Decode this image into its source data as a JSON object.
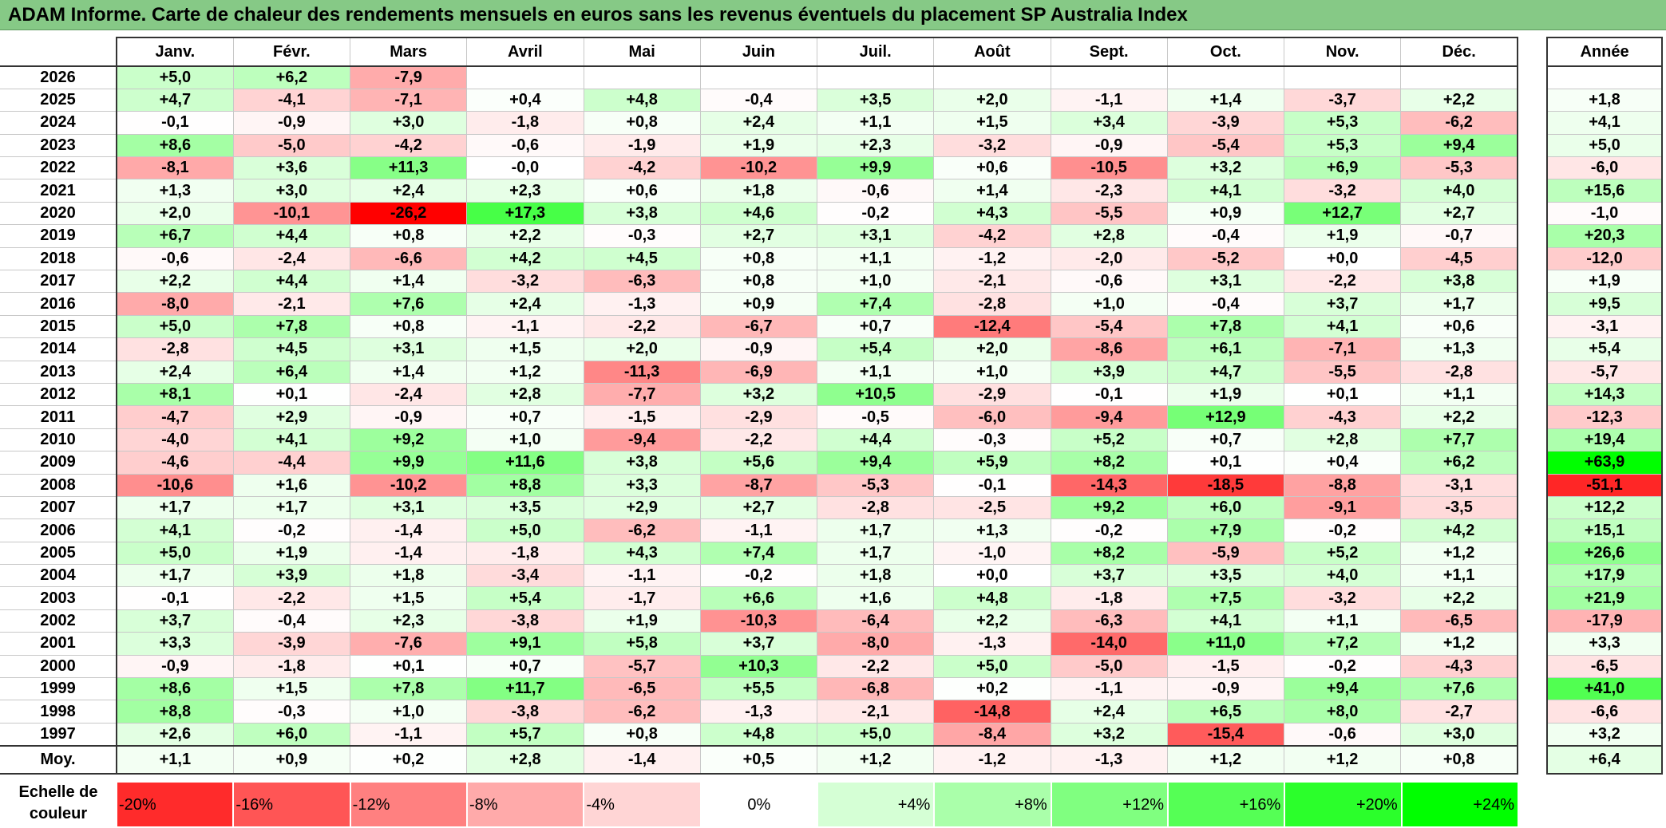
{
  "title": "ADAM Informe. Carte de chaleur des rendements mensuels en euros sans les revenus éventuels du placement SP Australia Index",
  "colors": {
    "title_bg": "#86c986",
    "max_red": "#ff0000",
    "max_green": "#00ff00",
    "neutral": "#ffffff"
  },
  "chart_data": {
    "type": "heatmap",
    "title": "ADAM Informe. Carte de chaleur des rendements mensuels en euros sans les revenus éventuels du placement SP Australia Index",
    "months": [
      "Janv.",
      "Févr.",
      "Mars",
      "Avril",
      "Mai",
      "Juin",
      "Juil.",
      "Août",
      "Sept.",
      "Oct.",
      "Nov.",
      "Déc."
    ],
    "year_header": "Année",
    "rows": [
      {
        "year": "2026",
        "values": [
          "+5,0",
          "+6,2",
          "-7,9",
          "",
          "",
          "",
          "",
          "",
          "",
          "",
          "",
          ""
        ],
        "annual": ""
      },
      {
        "year": "2025",
        "values": [
          "+4,7",
          "-4,1",
          "-7,1",
          "+0,4",
          "+4,8",
          "-0,4",
          "+3,5",
          "+2,0",
          "-1,1",
          "+1,4",
          "-3,7",
          "+2,2"
        ],
        "annual": "+1,8"
      },
      {
        "year": "2024",
        "values": [
          "-0,1",
          "-0,9",
          "+3,0",
          "-1,8",
          "+0,8",
          "+2,4",
          "+1,1",
          "+1,5",
          "+3,4",
          "-3,9",
          "+5,3",
          "-6,2"
        ],
        "annual": "+4,1"
      },
      {
        "year": "2023",
        "values": [
          "+8,6",
          "-5,0",
          "-4,2",
          "-0,6",
          "-1,9",
          "+1,9",
          "+2,3",
          "-3,2",
          "-0,9",
          "-5,4",
          "+5,3",
          "+9,4"
        ],
        "annual": "+5,0"
      },
      {
        "year": "2022",
        "values": [
          "-8,1",
          "+3,6",
          "+11,3",
          "-0,0",
          "-4,2",
          "-10,2",
          "+9,9",
          "+0,6",
          "-10,5",
          "+3,2",
          "+6,9",
          "-5,3"
        ],
        "annual": "-6,0"
      },
      {
        "year": "2021",
        "values": [
          "+1,3",
          "+3,0",
          "+2,4",
          "+2,3",
          "+0,6",
          "+1,8",
          "-0,6",
          "+1,4",
          "-2,3",
          "+4,1",
          "-3,2",
          "+4,0"
        ],
        "annual": "+15,6"
      },
      {
        "year": "2020",
        "values": [
          "+2,0",
          "-10,1",
          "-26,2",
          "+17,3",
          "+3,8",
          "+4,6",
          "-0,2",
          "+4,3",
          "-5,5",
          "+0,9",
          "+12,7",
          "+2,7"
        ],
        "annual": "-1,0"
      },
      {
        "year": "2019",
        "values": [
          "+6,7",
          "+4,4",
          "+0,8",
          "+2,2",
          "-0,3",
          "+2,7",
          "+3,1",
          "-4,2",
          "+2,8",
          "-0,4",
          "+1,9",
          "-0,7"
        ],
        "annual": "+20,3"
      },
      {
        "year": "2018",
        "values": [
          "-0,6",
          "-2,4",
          "-6,6",
          "+4,2",
          "+4,5",
          "+0,8",
          "+1,1",
          "-1,2",
          "-2,0",
          "-5,2",
          "+0,0",
          "-4,5"
        ],
        "annual": "-12,0"
      },
      {
        "year": "2017",
        "values": [
          "+2,2",
          "+4,4",
          "+1,4",
          "-3,2",
          "-6,3",
          "+0,8",
          "+1,0",
          "-2,1",
          "-0,6",
          "+3,1",
          "-2,2",
          "+3,8"
        ],
        "annual": "+1,9"
      },
      {
        "year": "2016",
        "values": [
          "-8,0",
          "-2,1",
          "+7,6",
          "+2,4",
          "-1,3",
          "+0,9",
          "+7,4",
          "-2,8",
          "+1,0",
          "-0,4",
          "+3,7",
          "+1,7"
        ],
        "annual": "+9,5"
      },
      {
        "year": "2015",
        "values": [
          "+5,0",
          "+7,8",
          "+0,8",
          "-1,1",
          "-2,2",
          "-6,7",
          "+0,7",
          "-12,4",
          "-5,4",
          "+7,8",
          "+4,1",
          "+0,6"
        ],
        "annual": "-3,1"
      },
      {
        "year": "2014",
        "values": [
          "-2,8",
          "+4,5",
          "+3,1",
          "+1,5",
          "+2,0",
          "-0,9",
          "+5,4",
          "+2,0",
          "-8,6",
          "+6,1",
          "-7,1",
          "+1,3"
        ],
        "annual": "+5,4"
      },
      {
        "year": "2013",
        "values": [
          "+2,4",
          "+6,4",
          "+1,4",
          "+1,2",
          "-11,3",
          "-6,9",
          "+1,1",
          "+1,0",
          "+3,9",
          "+4,7",
          "-5,5",
          "-2,8"
        ],
        "annual": "-5,7"
      },
      {
        "year": "2012",
        "values": [
          "+8,1",
          "+0,1",
          "-2,4",
          "+2,8",
          "-7,7",
          "+3,2",
          "+10,5",
          "-2,9",
          "-0,1",
          "+1,9",
          "+0,1",
          "+1,1"
        ],
        "annual": "+14,3"
      },
      {
        "year": "2011",
        "values": [
          "-4,7",
          "+2,9",
          "-0,9",
          "+0,7",
          "-1,5",
          "-2,9",
          "-0,5",
          "-6,0",
          "-9,4",
          "+12,9",
          "-4,3",
          "+2,2"
        ],
        "annual": "-12,3"
      },
      {
        "year": "2010",
        "values": [
          "-4,0",
          "+4,1",
          "+9,2",
          "+1,0",
          "-9,4",
          "-2,2",
          "+4,4",
          "-0,3",
          "+5,2",
          "+0,7",
          "+2,8",
          "+7,7"
        ],
        "annual": "+19,4"
      },
      {
        "year": "2009",
        "values": [
          "-4,6",
          "-4,4",
          "+9,9",
          "+11,6",
          "+3,8",
          "+5,6",
          "+9,4",
          "+5,9",
          "+8,2",
          "+0,1",
          "+0,4",
          "+6,2"
        ],
        "annual": "+63,9"
      },
      {
        "year": "2008",
        "values": [
          "-10,6",
          "+1,6",
          "-10,2",
          "+8,8",
          "+3,3",
          "-8,7",
          "-5,3",
          "-0,1",
          "-14,3",
          "-18,5",
          "-8,8",
          "-3,1"
        ],
        "annual": "-51,1"
      },
      {
        "year": "2007",
        "values": [
          "+1,7",
          "+1,7",
          "+3,1",
          "+3,5",
          "+2,9",
          "+2,7",
          "-2,8",
          "-2,5",
          "+9,2",
          "+6,0",
          "-9,1",
          "-3,5"
        ],
        "annual": "+12,2"
      },
      {
        "year": "2006",
        "values": [
          "+4,1",
          "-0,2",
          "-1,4",
          "+5,0",
          "-6,2",
          "-1,1",
          "+1,7",
          "+1,3",
          "-0,2",
          "+7,9",
          "-0,2",
          "+4,2"
        ],
        "annual": "+15,1"
      },
      {
        "year": "2005",
        "values": [
          "+5,0",
          "+1,9",
          "-1,4",
          "-1,8",
          "+4,3",
          "+7,4",
          "+1,7",
          "-1,0",
          "+8,2",
          "-5,9",
          "+5,2",
          "+1,2"
        ],
        "annual": "+26,6"
      },
      {
        "year": "2004",
        "values": [
          "+1,7",
          "+3,9",
          "+1,8",
          "-3,4",
          "-1,1",
          "-0,2",
          "+1,8",
          "+0,0",
          "+3,7",
          "+3,5",
          "+4,0",
          "+1,1"
        ],
        "annual": "+17,9"
      },
      {
        "year": "2003",
        "values": [
          "-0,1",
          "-2,2",
          "+1,5",
          "+5,4",
          "-1,7",
          "+6,6",
          "+1,6",
          "+4,8",
          "-1,8",
          "+7,5",
          "-3,2",
          "+2,2"
        ],
        "annual": "+21,9"
      },
      {
        "year": "2002",
        "values": [
          "+3,7",
          "-0,4",
          "+2,3",
          "-3,8",
          "+1,9",
          "-10,3",
          "-6,4",
          "+2,2",
          "-6,3",
          "+4,1",
          "+1,1",
          "-6,5"
        ],
        "annual": "-17,9"
      },
      {
        "year": "2001",
        "values": [
          "+3,3",
          "-3,9",
          "-7,6",
          "+9,1",
          "+5,8",
          "+3,7",
          "-8,0",
          "-1,3",
          "-14,0",
          "+11,0",
          "+7,2",
          "+1,2"
        ],
        "annual": "+3,3"
      },
      {
        "year": "2000",
        "values": [
          "-0,9",
          "-1,8",
          "+0,1",
          "+0,7",
          "-5,7",
          "+10,3",
          "-2,2",
          "+5,0",
          "-5,0",
          "-1,5",
          "-0,2",
          "-4,3"
        ],
        "annual": "-6,5"
      },
      {
        "year": "1999",
        "values": [
          "+8,6",
          "+1,5",
          "+7,8",
          "+11,7",
          "-6,5",
          "+5,5",
          "-6,8",
          "+0,2",
          "-1,1",
          "-0,9",
          "+9,4",
          "+7,6"
        ],
        "annual": "+41,0"
      },
      {
        "year": "1998",
        "values": [
          "+8,8",
          "-0,3",
          "+1,0",
          "-3,8",
          "-6,2",
          "-1,3",
          "-2,1",
          "-14,8",
          "+2,4",
          "+6,5",
          "+8,0",
          "-2,7"
        ],
        "annual": "-6,6"
      },
      {
        "year": "1997",
        "values": [
          "+2,6",
          "+6,0",
          "-1,1",
          "+5,7",
          "+0,8",
          "+4,8",
          "+5,0",
          "-8,4",
          "+3,2",
          "-15,4",
          "-0,6",
          "+3,0"
        ],
        "annual": "+3,2"
      }
    ],
    "average": {
      "label": "Moy.",
      "values": [
        "+1,1",
        "+0,9",
        "+0,2",
        "+2,8",
        "-1,4",
        "+0,5",
        "+1,2",
        "-1,2",
        "-1,3",
        "+1,2",
        "+1,2",
        "+0,8"
      ],
      "annual": "+6,4"
    },
    "scale": {
      "label": "Echelle de couleur",
      "stops": [
        {
          "label": "-20%",
          "value": -20
        },
        {
          "label": "-16%",
          "value": -16
        },
        {
          "label": "-12%",
          "value": -12
        },
        {
          "label": "-8%",
          "value": -8
        },
        {
          "label": "-4%",
          "value": -4
        },
        {
          "label": "0%",
          "value": 0
        },
        {
          "label": "+4%",
          "value": 4
        },
        {
          "label": "+8%",
          "value": 8
        },
        {
          "label": "+12%",
          "value": 12
        },
        {
          "label": "+16%",
          "value": 16
        },
        {
          "label": "+20%",
          "value": 20
        },
        {
          "label": "+24%",
          "value": 24
        }
      ]
    }
  }
}
